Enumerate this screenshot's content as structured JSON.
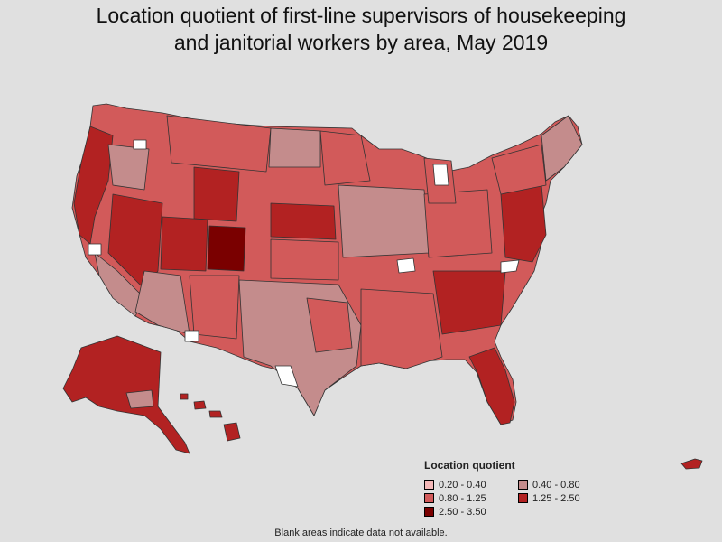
{
  "title": {
    "line1": "Location quotient of first-line supervisors of housekeeping",
    "line2": "and janitorial workers by area, May 2019"
  },
  "legend": {
    "title": "Location quotient",
    "items": [
      {
        "label": "0.20 - 0.40",
        "color": "#f4b8b8"
      },
      {
        "label": "0.40 - 0.80",
        "color": "#c48c8c"
      },
      {
        "label": "0.80 - 1.25",
        "color": "#d25a5a"
      },
      {
        "label": "1.25 - 2.50",
        "color": "#b22222"
      },
      {
        "label": "2.50 - 3.50",
        "color": "#7a0000"
      }
    ]
  },
  "footnote": "Blank areas indicate data not available.",
  "colors": {
    "background": "#e0e0e0",
    "border": "#333333",
    "no_data": "#ffffff"
  }
}
